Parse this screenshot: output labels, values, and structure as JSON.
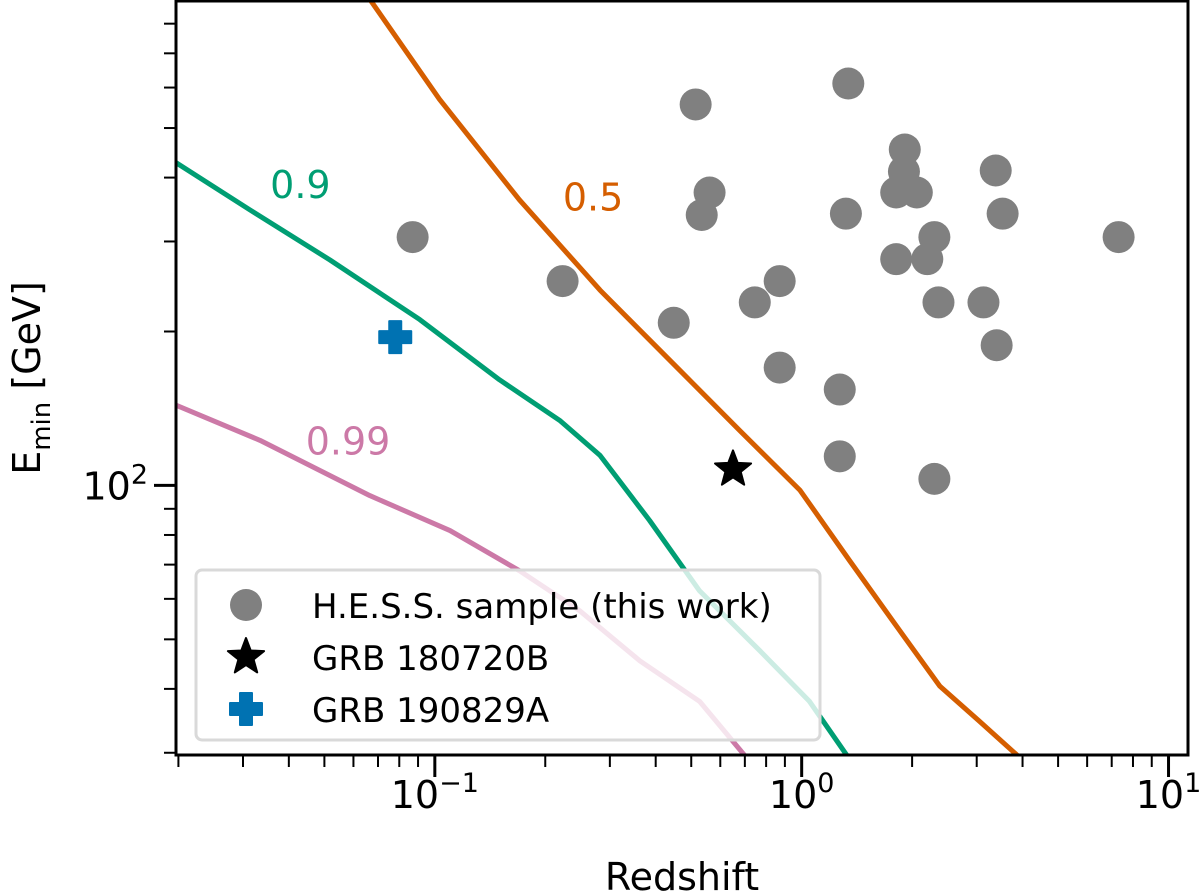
{
  "chart_data": {
    "type": "scatter",
    "title": "",
    "xlabel": "Redshift",
    "ylabel_main": "E",
    "ylabel_sub": "min",
    "ylabel_unit": " [GeV]",
    "xscale": "log",
    "yscale": "log",
    "xlim": [
      0.0197,
      11.3
    ],
    "ylim": [
      29.7,
      890
    ],
    "x_ticks": [
      {
        "value": 0.1,
        "base": "10",
        "exp": "−1"
      },
      {
        "value": 1,
        "base": "10",
        "exp": "0"
      },
      {
        "value": 10,
        "base": "10",
        "exp": "1"
      }
    ],
    "y_ticks": [
      {
        "value": 100,
        "base": "10",
        "exp": "2"
      }
    ],
    "grid": false,
    "legend_position": "lower-left",
    "series": [
      {
        "name": "H.E.S.S. sample (this work)",
        "marker": "circle",
        "color": "#808080",
        "points": [
          [
            0.087,
            306
          ],
          [
            0.223,
            251
          ],
          [
            0.448,
            208
          ],
          [
            0.514,
            556
          ],
          [
            0.561,
            374
          ],
          [
            0.534,
            338
          ],
          [
            0.745,
            228
          ],
          [
            0.871,
            251
          ],
          [
            0.871,
            170
          ],
          [
            1.34,
            611
          ],
          [
            1.32,
            340
          ],
          [
            1.27,
            154
          ],
          [
            1.27,
            114
          ],
          [
            1.91,
            454
          ],
          [
            1.9,
            411
          ],
          [
            1.81,
            374
          ],
          [
            2.06,
            374
          ],
          [
            1.81,
            277
          ],
          [
            2.2,
            277
          ],
          [
            2.3,
            306
          ],
          [
            2.36,
            228
          ],
          [
            2.3,
            103
          ],
          [
            3.13,
            228
          ],
          [
            3.4,
            188
          ],
          [
            3.38,
            413
          ],
          [
            3.53,
            340
          ],
          [
            7.31,
            306
          ]
        ]
      },
      {
        "name": "GRB 180720B",
        "marker": "star",
        "color": "#000000",
        "points": [
          [
            0.65,
            107.5
          ]
        ]
      },
      {
        "name": "GRB 190829A",
        "marker": "plus",
        "color": "#0072b2",
        "points": [
          [
            0.078,
            195
          ]
        ]
      }
    ],
    "curves": [
      {
        "label": "0.5",
        "color": "#d55e00",
        "label_at": [
          0.27,
          345
        ],
        "points": [
          [
            0.0665,
            893
          ],
          [
            0.103,
            569
          ],
          [
            0.17,
            362
          ],
          [
            0.282,
            241
          ],
          [
            0.465,
            168
          ],
          [
            0.678,
            128
          ],
          [
            0.99,
            97.8
          ],
          [
            1.35,
            71.3
          ],
          [
            1.85,
            52
          ],
          [
            2.38,
            40.5
          ],
          [
            3.05,
            34.6
          ],
          [
            3.88,
            29.6
          ]
        ]
      },
      {
        "label": "0.9",
        "color": "#009e73",
        "label_at": [
          0.043,
          365
        ],
        "points": [
          [
            0.0197,
            428
          ],
          [
            0.0313,
            346
          ],
          [
            0.0518,
            276
          ],
          [
            0.091,
            211
          ],
          [
            0.15,
            161
          ],
          [
            0.219,
            134
          ],
          [
            0.282,
            114.5
          ],
          [
            0.385,
            85.4
          ],
          [
            0.527,
            62.2
          ],
          [
            0.769,
            47.5
          ],
          [
            1.05,
            37.8
          ],
          [
            1.33,
            29.6
          ]
        ]
      },
      {
        "label": "0.99",
        "color": "#cc79a7",
        "label_at": [
          0.058,
          115
        ],
        "points": [
          [
            0.0197,
            143.5
          ],
          [
            0.0334,
            122.5
          ],
          [
            0.0665,
            95.5
          ],
          [
            0.11,
            81.6
          ],
          [
            0.17,
            68.1
          ],
          [
            0.248,
            56.9
          ],
          [
            0.362,
            45.4
          ],
          [
            0.527,
            37.8
          ],
          [
            0.7,
            29.6
          ]
        ]
      }
    ]
  }
}
